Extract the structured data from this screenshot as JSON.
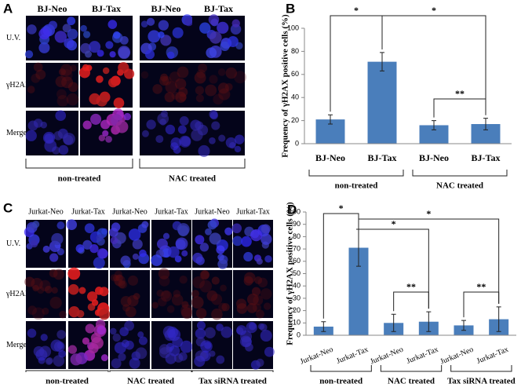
{
  "panels": {
    "a": "A",
    "b": "B",
    "c": "C",
    "d": "D"
  },
  "figure_a": {
    "columns": [
      "BJ-Neo",
      "BJ-Tax",
      "BJ-Neo",
      "BJ-Tax"
    ],
    "rows": [
      "U.V.",
      "γH2AX",
      "Merge"
    ],
    "groups": [
      "non-treated",
      "NAC treated"
    ]
  },
  "figure_c": {
    "columns": [
      "Jurkat-Neo",
      "Jurkat-Tax",
      "Jurkat-Neo",
      "Jurkat-Tax",
      "Jurkat-Neo",
      "Jurkat-Tax"
    ],
    "rows": [
      "U.V.",
      "γH2AX",
      "Merge"
    ],
    "groups": [
      "non-treated",
      "NAC treated",
      "Tax siRNA treated"
    ]
  },
  "chart_data": [
    {
      "type": "bar",
      "y_label": "Frequency of γH2AX positive cells (%)",
      "categories": [
        "BJ-Neo",
        "BJ-Tax",
        "BJ-Neo",
        "BJ-Tax"
      ],
      "groups": [
        "non-treated",
        "NAC treated"
      ],
      "values": [
        21,
        71,
        16,
        17
      ],
      "errors": [
        4,
        8,
        4,
        5
      ],
      "color": "#4a7ebb",
      "ylim": [
        0,
        100
      ],
      "yticks": [
        0,
        20,
        40,
        60,
        80,
        100
      ],
      "annotations": [
        "*",
        "*",
        "**"
      ]
    },
    {
      "type": "bar",
      "y_label": "Frequency of γH2AX positive cells (%)",
      "categories": [
        "Jurkat-Neo",
        "Jurkat-Tax",
        "Jurkat-Neo",
        "Jurkat-Tax",
        "Jurkat-Neo",
        "Jurkat-Tax"
      ],
      "groups": [
        "non-treated",
        "NAC treated",
        "Tax siRNA treated"
      ],
      "values": [
        7,
        71,
        10,
        11,
        8,
        13
      ],
      "errors": [
        4,
        15,
        7,
        8,
        4,
        10
      ],
      "color": "#4a7ebb",
      "ylim": [
        0,
        100
      ],
      "yticks": [
        0,
        10,
        20,
        30,
        40,
        50,
        60,
        70,
        80,
        90,
        100
      ],
      "annotations": [
        "*",
        "*",
        "*",
        "**",
        "**"
      ]
    }
  ]
}
